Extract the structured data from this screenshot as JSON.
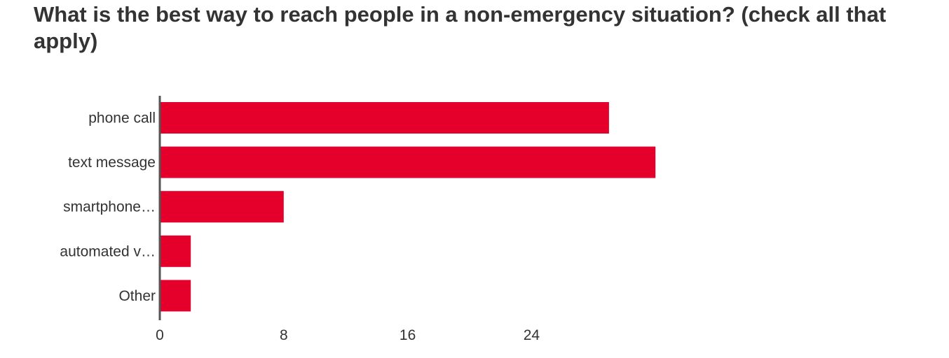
{
  "chart_data": {
    "type": "bar",
    "orientation": "horizontal",
    "title": "What is the best way to reach people in a non-emergency situation? (check all that apply)",
    "categories": [
      "phone call",
      "text message",
      "smartphone…",
      "automated v…",
      "Other"
    ],
    "values": [
      29,
      32,
      8,
      2,
      2
    ],
    "xticks": [
      0,
      8,
      16,
      24
    ],
    "xlim": [
      0,
      48
    ],
    "xlabel": "",
    "ylabel": "",
    "grid": false,
    "bar_color": "#E4002B",
    "axis_color": "#555555"
  }
}
